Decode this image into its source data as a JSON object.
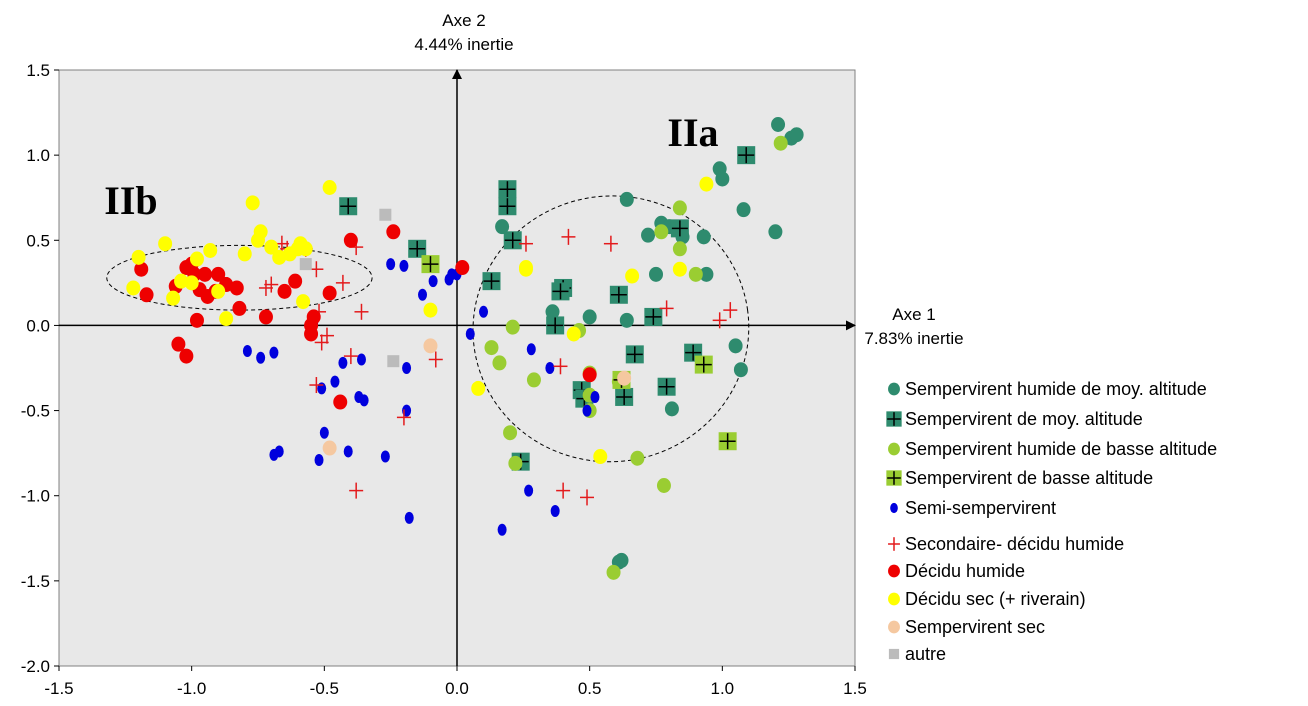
{
  "chart_data": {
    "type": "scatter",
    "xlim": [
      -1.5,
      1.5
    ],
    "ylim": [
      -2.0,
      1.5
    ],
    "x_ticks": [
      "-1.5",
      "-1.0",
      "-0.5",
      "0.0",
      "0.5",
      "1.0",
      "1.5"
    ],
    "y_ticks": [
      "1.5",
      "1.0",
      "0.5",
      "0.0",
      "-0.5",
      "-1.0",
      "-1.5",
      "-2.0"
    ],
    "x_tick_values": [
      -1.5,
      -1.0,
      -0.5,
      0.0,
      0.5,
      1.0,
      1.5
    ],
    "y_tick_values": [
      1.5,
      1.0,
      0.5,
      0.0,
      -0.5,
      -1.0,
      -1.5,
      -2.0
    ],
    "axis1_label": "Axe 1",
    "axis1_inertia": "7.83% inertie",
    "axis2_label": "Axe 2",
    "axis2_inertia": "4.44% inertie",
    "background": "#e8e8e8",
    "legend_position": "right",
    "groups": [
      {
        "label": "IIa",
        "center": [
          0.58,
          -0.02
        ],
        "radii": [
          0.52,
          1.56
        ],
        "rotation": -8
      },
      {
        "label": "IIb",
        "center": [
          -0.82,
          0.28
        ],
        "radii": [
          0.5,
          0.38
        ],
        "rotation": 0
      }
    ],
    "series": [
      {
        "name": "Sempervirent humide de moy. altitude",
        "marker": "circle",
        "color": "#2e8b6e",
        "points": [
          [
            1.21,
            1.18
          ],
          [
            1.26,
            1.1
          ],
          [
            1.28,
            1.12
          ],
          [
            0.99,
            0.92
          ],
          [
            1.0,
            0.86
          ],
          [
            1.08,
            0.68
          ],
          [
            0.64,
            0.74
          ],
          [
            0.77,
            0.6
          ],
          [
            0.8,
            0.58
          ],
          [
            0.72,
            0.53
          ],
          [
            0.85,
            0.52
          ],
          [
            0.93,
            0.52
          ],
          [
            1.2,
            0.55
          ],
          [
            0.94,
            0.3
          ],
          [
            0.75,
            0.3
          ],
          [
            0.64,
            0.03
          ],
          [
            0.36,
            0.08
          ],
          [
            0.5,
            0.05
          ],
          [
            1.05,
            -0.12
          ],
          [
            1.07,
            -0.26
          ],
          [
            0.81,
            -0.49
          ],
          [
            0.62,
            -1.38
          ],
          [
            0.61,
            -1.39
          ],
          [
            0.17,
            0.58
          ]
        ]
      },
      {
        "name": "Sempervirent de moy. altitude",
        "marker": "square-plus",
        "color": "#2e8b6e",
        "points": [
          [
            1.09,
            1.0
          ],
          [
            0.19,
            0.8
          ],
          [
            0.19,
            0.7
          ],
          [
            -0.41,
            0.7
          ],
          [
            0.84,
            0.57
          ],
          [
            0.21,
            0.5
          ],
          [
            -0.15,
            0.45
          ],
          [
            0.13,
            0.26
          ],
          [
            0.4,
            0.22
          ],
          [
            0.39,
            0.2
          ],
          [
            0.61,
            0.18
          ],
          [
            0.74,
            0.05
          ],
          [
            0.37,
            0.0
          ],
          [
            0.67,
            -0.17
          ],
          [
            0.89,
            -0.16
          ],
          [
            0.79,
            -0.36
          ],
          [
            0.47,
            -0.38
          ],
          [
            0.48,
            -0.43
          ],
          [
            0.63,
            -0.42
          ],
          [
            0.24,
            -0.8
          ]
        ]
      },
      {
        "name": "Sempervirent humide de basse altitude",
        "marker": "circle",
        "color": "#9acd32",
        "points": [
          [
            1.22,
            1.07
          ],
          [
            0.84,
            0.69
          ],
          [
            0.77,
            0.55
          ],
          [
            0.84,
            0.45
          ],
          [
            0.9,
            0.3
          ],
          [
            0.21,
            -0.01
          ],
          [
            0.46,
            -0.03
          ],
          [
            0.13,
            -0.13
          ],
          [
            0.16,
            -0.22
          ],
          [
            0.29,
            -0.32
          ],
          [
            0.5,
            -0.28
          ],
          [
            0.61,
            -0.33
          ],
          [
            0.5,
            -0.41
          ],
          [
            0.5,
            -0.5
          ],
          [
            0.2,
            -0.63
          ],
          [
            0.22,
            -0.81
          ],
          [
            0.68,
            -0.78
          ],
          [
            0.78,
            -0.94
          ],
          [
            0.59,
            -1.45
          ]
        ]
      },
      {
        "name": "Sempervirent de basse altitude",
        "marker": "square-plus",
        "color": "#9acd32",
        "points": [
          [
            -0.1,
            0.36
          ],
          [
            0.93,
            -0.23
          ],
          [
            0.62,
            -0.32
          ],
          [
            1.02,
            -0.68
          ]
        ]
      },
      {
        "name": "Semi-sempervirent",
        "marker": "ellipse",
        "color": "#0000dd",
        "points": [
          [
            -0.25,
            0.36
          ],
          [
            -0.2,
            0.35
          ],
          [
            -0.02,
            0.3
          ],
          [
            -0.03,
            0.27
          ],
          [
            0.0,
            0.3
          ],
          [
            -0.09,
            0.26
          ],
          [
            -0.13,
            0.18
          ],
          [
            -0.54,
            0.02
          ],
          [
            -0.69,
            -0.16
          ],
          [
            -0.74,
            -0.19
          ],
          [
            -0.79,
            -0.15
          ],
          [
            -0.36,
            -0.2
          ],
          [
            -0.43,
            -0.22
          ],
          [
            -0.19,
            -0.25
          ],
          [
            -0.46,
            -0.33
          ],
          [
            -0.51,
            -0.37
          ],
          [
            -0.37,
            -0.42
          ],
          [
            -0.35,
            -0.44
          ],
          [
            -0.19,
            -0.5
          ],
          [
            0.05,
            -0.05
          ],
          [
            0.1,
            0.08
          ],
          [
            0.28,
            -0.14
          ],
          [
            0.35,
            -0.25
          ],
          [
            0.49,
            -0.5
          ],
          [
            0.52,
            -0.42
          ],
          [
            -0.5,
            -0.63
          ],
          [
            -0.52,
            -0.79
          ],
          [
            -0.69,
            -0.76
          ],
          [
            -0.67,
            -0.74
          ],
          [
            -0.41,
            -0.74
          ],
          [
            -0.27,
            -0.77
          ],
          [
            -0.18,
            -1.13
          ],
          [
            0.17,
            -1.2
          ],
          [
            0.27,
            -0.97
          ],
          [
            0.37,
            -1.09
          ],
          [
            0.54,
            -0.77
          ]
        ]
      },
      {
        "name": "Secondaire- décidu humide",
        "marker": "plus",
        "color": "#e31a1c",
        "points": [
          [
            -0.66,
            0.48
          ],
          [
            -0.57,
            0.45
          ],
          [
            -0.38,
            0.46
          ],
          [
            -0.53,
            0.33
          ],
          [
            -0.43,
            0.25
          ],
          [
            -0.72,
            0.22
          ],
          [
            -0.7,
            0.24
          ],
          [
            -0.64,
            0.45
          ],
          [
            -0.89,
            0.28
          ],
          [
            -0.52,
            0.08
          ],
          [
            -0.36,
            0.08
          ],
          [
            -0.49,
            -0.06
          ],
          [
            -0.51,
            -0.1
          ],
          [
            -0.4,
            -0.18
          ],
          [
            -0.53,
            -0.35
          ],
          [
            -0.2,
            -0.54
          ],
          [
            -0.38,
            -0.97
          ],
          [
            -0.08,
            -0.2
          ],
          [
            0.26,
            0.48
          ],
          [
            0.42,
            0.52
          ],
          [
            0.58,
            0.48
          ],
          [
            0.79,
            0.1
          ],
          [
            0.99,
            0.03
          ],
          [
            1.03,
            0.09
          ],
          [
            0.39,
            -0.24
          ],
          [
            0.4,
            -0.97
          ],
          [
            0.49,
            -1.01
          ]
        ]
      },
      {
        "name": "Décidu humide",
        "marker": "circle",
        "color": "#ee0000",
        "points": [
          [
            -1.19,
            0.33
          ],
          [
            -1.17,
            0.18
          ],
          [
            -1.06,
            0.23
          ],
          [
            -1.02,
            0.34
          ],
          [
            -1.0,
            0.36
          ],
          [
            -0.99,
            0.3
          ],
          [
            -0.97,
            0.21
          ],
          [
            -0.98,
            0.03
          ],
          [
            -0.95,
            0.3
          ],
          [
            -0.94,
            0.17
          ],
          [
            -0.91,
            0.2
          ],
          [
            -0.9,
            0.3
          ],
          [
            -0.87,
            0.24
          ],
          [
            -0.83,
            0.22
          ],
          [
            -0.82,
            0.1
          ],
          [
            -0.72,
            0.05
          ],
          [
            -0.65,
            0.2
          ],
          [
            -0.61,
            0.26
          ],
          [
            -0.55,
            0.0
          ],
          [
            -0.55,
            -0.05
          ],
          [
            -0.54,
            0.05
          ],
          [
            -0.4,
            0.5
          ],
          [
            -0.48,
            0.19
          ],
          [
            -0.24,
            0.55
          ],
          [
            -0.44,
            -0.45
          ],
          [
            0.02,
            0.34
          ],
          [
            0.5,
            -0.29
          ],
          [
            -1.05,
            -0.11
          ],
          [
            -1.02,
            -0.18
          ]
        ]
      },
      {
        "name": "Décidu sec (+ riverain)",
        "marker": "circle",
        "color": "#ffff00",
        "points": [
          [
            -1.2,
            0.4
          ],
          [
            -1.22,
            0.22
          ],
          [
            -1.1,
            0.48
          ],
          [
            -1.07,
            0.16
          ],
          [
            -1.04,
            0.26
          ],
          [
            -1.0,
            0.25
          ],
          [
            -0.98,
            0.39
          ],
          [
            -0.93,
            0.44
          ],
          [
            -0.9,
            0.2
          ],
          [
            -0.87,
            0.04
          ],
          [
            -0.8,
            0.42
          ],
          [
            -0.77,
            0.72
          ],
          [
            -0.75,
            0.5
          ],
          [
            -0.74,
            0.55
          ],
          [
            -0.7,
            0.46
          ],
          [
            -0.67,
            0.4
          ],
          [
            -0.63,
            0.42
          ],
          [
            -0.6,
            0.45
          ],
          [
            -0.59,
            0.48
          ],
          [
            -0.57,
            0.45
          ],
          [
            -0.58,
            0.14
          ],
          [
            -0.48,
            0.81
          ],
          [
            -0.1,
            0.09
          ],
          [
            0.08,
            -0.37
          ],
          [
            0.26,
            0.33
          ],
          [
            0.44,
            -0.05
          ],
          [
            0.66,
            0.29
          ],
          [
            0.84,
            0.33
          ],
          [
            0.94,
            0.83
          ],
          [
            0.26,
            0.34
          ],
          [
            0.54,
            -0.77
          ]
        ]
      },
      {
        "name": "Sempervirent sec",
        "marker": "circle",
        "color": "#f5c8a0",
        "points": [
          [
            -0.1,
            -0.12
          ],
          [
            -0.48,
            -0.72
          ],
          [
            0.63,
            -0.31
          ]
        ]
      },
      {
        "name": "autre",
        "marker": "square",
        "color": "#bbbbbb",
        "points": [
          [
            -0.27,
            0.65
          ],
          [
            -0.57,
            0.36
          ],
          [
            -0.24,
            -0.21
          ]
        ]
      }
    ]
  },
  "legend": {
    "items": [
      {
        "label": "Sempervirent humide de moy. altitude",
        "marker": "circle",
        "color": "#2e8b6e"
      },
      {
        "label": "Sempervirent de moy. altitude",
        "marker": "square-plus",
        "color": "#2e8b6e"
      },
      {
        "label": "Sempervirent humide de basse altitude",
        "marker": "circle",
        "color": "#9acd32"
      },
      {
        "label": "Sempervirent de basse altitude",
        "marker": "square-plus",
        "color": "#9acd32"
      },
      {
        "label": "Semi-sempervirent",
        "marker": "ellipse",
        "color": "#0000dd"
      },
      {
        "label": "Secondaire- décidu humide",
        "marker": "plus",
        "color": "#e31a1c"
      },
      {
        "label": "Décidu humide",
        "marker": "circle",
        "color": "#ee0000"
      },
      {
        "label": "Décidu sec (+ riverain)",
        "marker": "circle",
        "color": "#ffff00"
      },
      {
        "label": "Sempervirent sec",
        "marker": "circle",
        "color": "#f5c8a0"
      },
      {
        "label": "autre",
        "marker": "square",
        "color": "#bbbbbb"
      }
    ]
  }
}
